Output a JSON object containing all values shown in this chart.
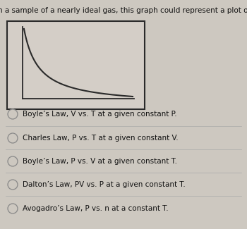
{
  "title": "In a sample of a nearly ideal gas, this graph could represent a plot of",
  "title_fontsize": 7.5,
  "options": [
    "Boyle’s Law, V vs. T at a given constant P.",
    "Charles Law, P vs. T at a given constant V.",
    "Boyle’s Law, P vs. V at a given constant T.",
    "Dalton’s Law, PV vs. P at a given constant T.",
    "Avogadro’s Law, P vs. n at a constant T."
  ],
  "option_fontsize": 7.5,
  "bg_color": "#cdc8c0",
  "box_facecolor": "#d4cec7",
  "box_color": "#2a2a2a",
  "curve_color": "#2a2a2a",
  "circle_color": "#888888",
  "circle_fill": "#cdc8c0"
}
